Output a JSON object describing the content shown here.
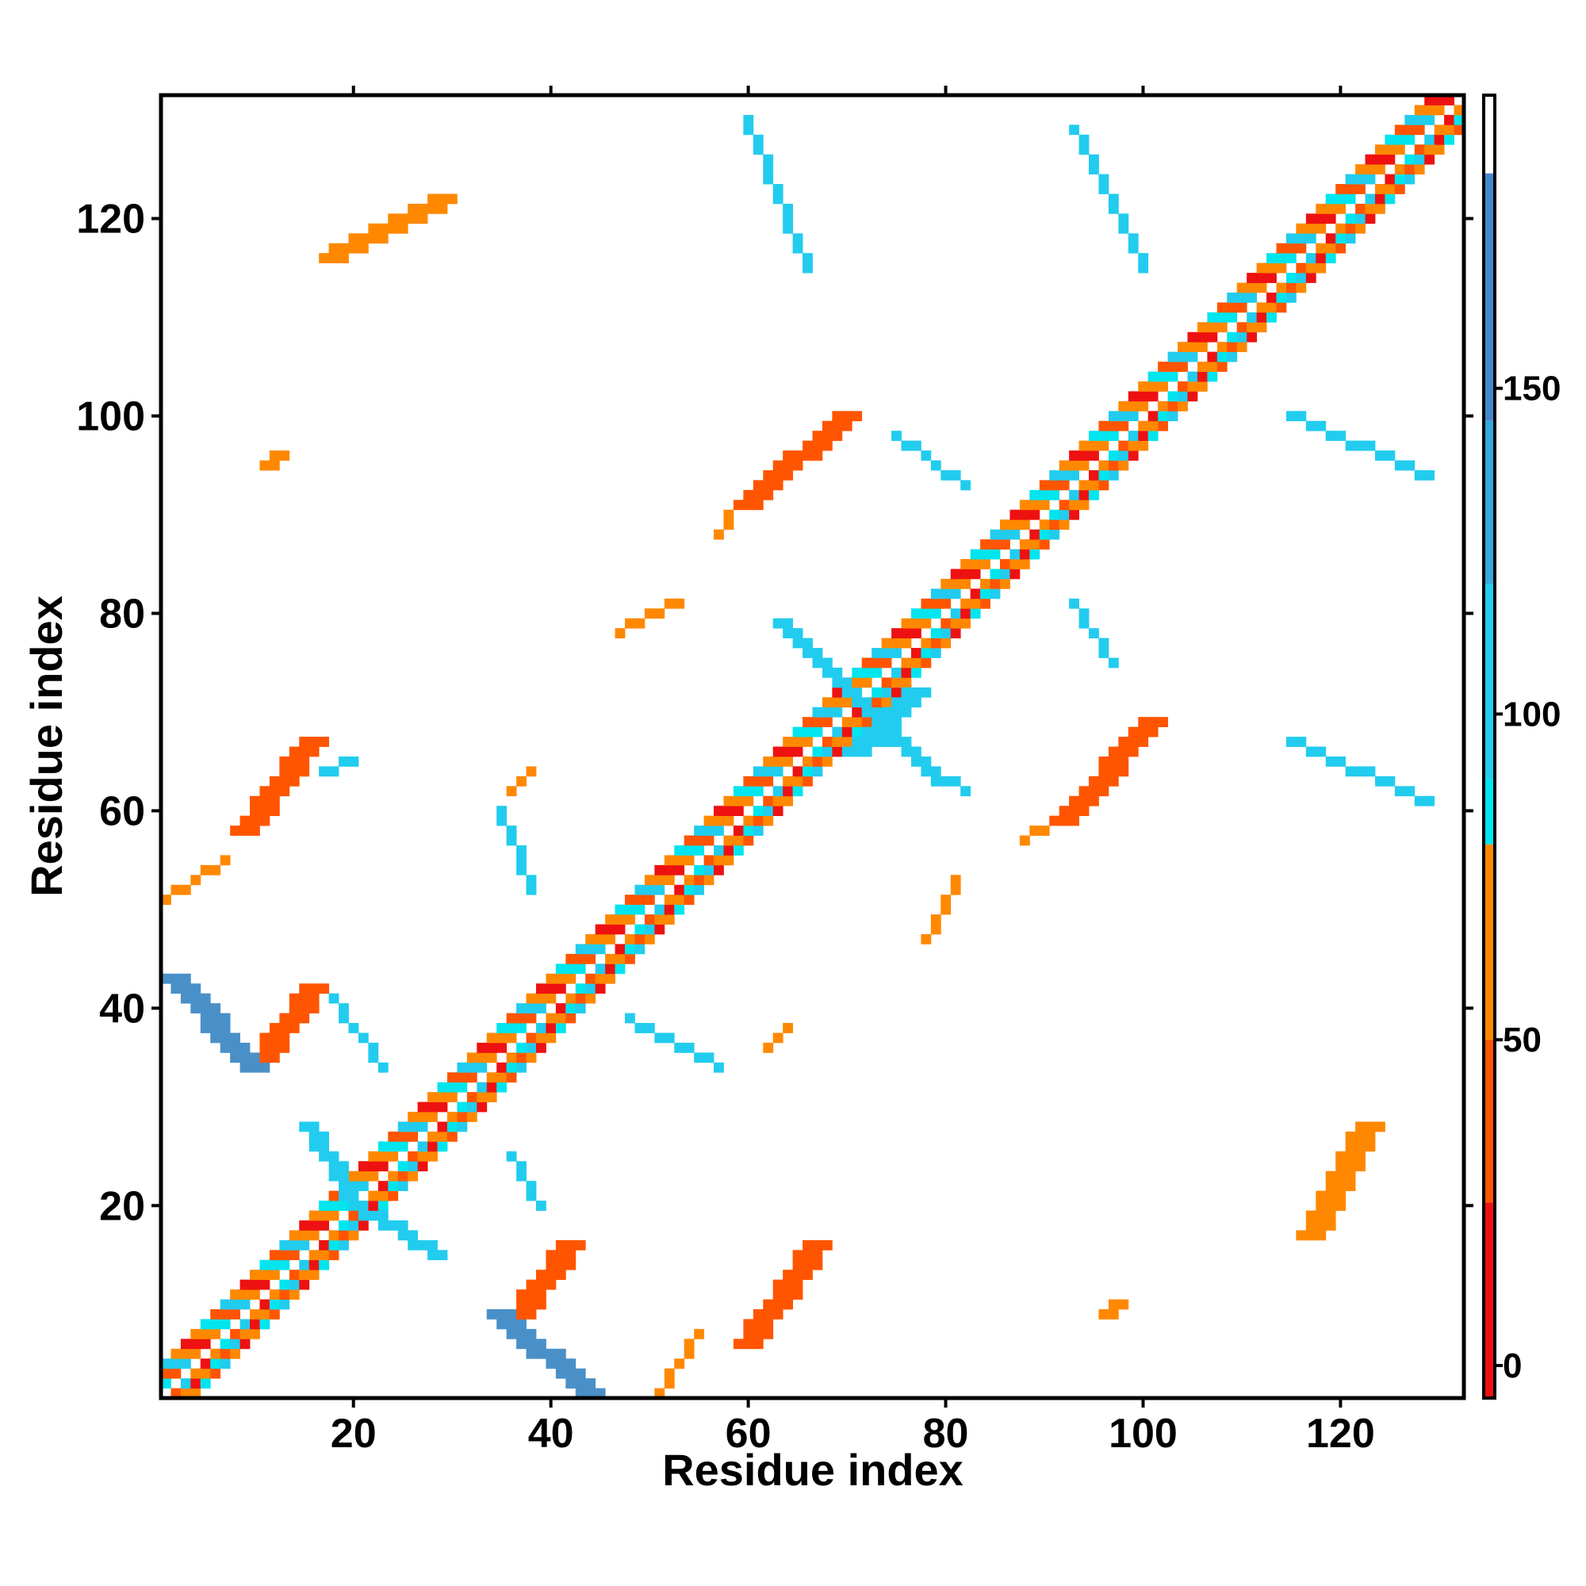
{
  "chart_data": {
    "type": "heatmap",
    "title": "",
    "xlabel": "Residue index",
    "ylabel": "Residue index",
    "xlim": [
      0.5,
      132.5
    ],
    "ylim": [
      0.5,
      132.5
    ],
    "x_ticks": [
      20,
      40,
      60,
      80,
      100,
      120
    ],
    "y_ticks": [
      20,
      40,
      60,
      80,
      100,
      120
    ],
    "colorbar": {
      "range": [
        -5,
        195
      ],
      "ticks": [
        0,
        50,
        100,
        150
      ],
      "bands": [
        {
          "from": -5,
          "to": 25,
          "color": "#ee1111"
        },
        {
          "from": 25,
          "to": 50,
          "color": "#ff5500"
        },
        {
          "from": 50,
          "to": 80,
          "color": "#ff8800"
        },
        {
          "from": 80,
          "to": 90,
          "color": "#00e5ee"
        },
        {
          "from": 90,
          "to": 120,
          "color": "#22ccee"
        },
        {
          "from": 120,
          "to": 145,
          "color": "#33aadd"
        },
        {
          "from": 145,
          "to": 183,
          "color": "#4488cc"
        },
        {
          "from": 183,
          "to": 195,
          "color": "#ffffff"
        }
      ]
    },
    "palette": {
      "red": "#ee1111",
      "red_orange": "#ff5500",
      "orange": "#ff8800",
      "cyan": "#00e5ee",
      "sky": "#22ccee",
      "steel": "#4a90c8"
    },
    "regions": [
      {
        "kind": "diagonal_band",
        "x_range": [
          1,
          132
        ],
        "offset": [
          -3,
          3
        ],
        "color_cycle": [
          "red",
          "orange",
          "cyan",
          "red_orange",
          "sky",
          "orange"
        ]
      },
      {
        "kind": "band",
        "color": "red_orange",
        "from": [
          9,
          34
        ],
        "to": [
          15,
          42
        ],
        "width": 3
      },
      {
        "kind": "band",
        "color": "red_orange",
        "from": [
          8,
          58
        ],
        "to": [
          15,
          67
        ],
        "width": 3
      },
      {
        "kind": "band",
        "color": "red_orange",
        "from": [
          35,
          8
        ],
        "to": [
          41,
          16
        ],
        "width": 3
      },
      {
        "kind": "band",
        "color": "red_orange",
        "from": [
          59,
          6
        ],
        "to": [
          66,
          16
        ],
        "width": 3
      },
      {
        "kind": "band",
        "color": "red_orange",
        "from": [
          59,
          91
        ],
        "to": [
          69,
          100
        ],
        "width": 3
      },
      {
        "kind": "band",
        "color": "red_orange",
        "from": [
          91,
          59
        ],
        "to": [
          100,
          69
        ],
        "width": 3
      },
      {
        "kind": "band",
        "color": "steel",
        "from": [
          1,
          43
        ],
        "to": [
          9,
          34
        ],
        "width": 3
      },
      {
        "kind": "band",
        "color": "steel",
        "from": [
          34,
          9
        ],
        "to": [
          43,
          1
        ],
        "width": 3
      },
      {
        "kind": "band",
        "color": "sky",
        "from": [
          15,
          28
        ],
        "to": [
          20,
          20
        ],
        "width": 2
      },
      {
        "kind": "band",
        "color": "sky",
        "from": [
          28,
          15
        ],
        "to": [
          20,
          20
        ],
        "width": 2
      },
      {
        "kind": "band",
        "color": "sky",
        "from": [
          70,
          66
        ],
        "to": [
          76,
          72
        ],
        "width": 3
      },
      {
        "kind": "band",
        "color": "sky",
        "from": [
          63,
          79
        ],
        "to": [
          72,
          70
        ],
        "width": 2
      },
      {
        "kind": "band",
        "color": "sky",
        "from": [
          79,
          63
        ],
        "to": [
          72,
          70
        ],
        "width": 2
      },
      {
        "kind": "band",
        "color": "sky",
        "from": [
          60,
          130
        ],
        "to": [
          66,
          115
        ],
        "width": 1
      },
      {
        "kind": "band",
        "color": "sky",
        "from": [
          93,
          129
        ],
        "to": [
          100,
          115
        ],
        "width": 1
      },
      {
        "kind": "band",
        "color": "sky",
        "from": [
          115,
          100
        ],
        "to": [
          129,
          94
        ],
        "width": 1
      },
      {
        "kind": "band",
        "color": "sky",
        "from": [
          75,
          98
        ],
        "to": [
          82,
          93
        ],
        "width": 1
      },
      {
        "kind": "band",
        "color": "sky",
        "from": [
          93,
          81
        ],
        "to": [
          97,
          75
        ],
        "width": 1
      },
      {
        "kind": "band",
        "color": "sky",
        "from": [
          115,
          67
        ],
        "to": [
          129,
          61
        ],
        "width": 1
      },
      {
        "kind": "band",
        "color": "sky",
        "from": [
          73,
          68
        ],
        "to": [
          82,
          62
        ],
        "width": 1
      },
      {
        "kind": "band",
        "color": "sky",
        "from": [
          17,
          64
        ],
        "to": [
          20,
          65
        ],
        "width": 1
      },
      {
        "kind": "band",
        "color": "sky",
        "from": [
          18,
          41
        ],
        "to": [
          23,
          34
        ],
        "width": 1
      },
      {
        "kind": "band",
        "color": "sky",
        "from": [
          36,
          25
        ],
        "to": [
          39,
          20
        ],
        "width": 1
      },
      {
        "kind": "band",
        "color": "sky",
        "from": [
          35,
          60
        ],
        "to": [
          38,
          52
        ],
        "width": 1
      },
      {
        "kind": "band",
        "color": "sky",
        "from": [
          48,
          39
        ],
        "to": [
          57,
          34
        ],
        "width": 1
      },
      {
        "kind": "band",
        "color": "orange",
        "from": [
          17,
          116
        ],
        "to": [
          28,
          122
        ],
        "width": 3
      },
      {
        "kind": "band",
        "color": "orange",
        "from": [
          116,
          17
        ],
        "to": [
          122,
          28
        ],
        "width": 3
      },
      {
        "kind": "band",
        "color": "orange",
        "from": [
          96,
          9
        ],
        "to": [
          97,
          10
        ],
        "width": 2
      },
      {
        "kind": "band",
        "color": "orange",
        "from": [
          11,
          95
        ],
        "to": [
          12,
          96
        ],
        "width": 2
      },
      {
        "kind": "band",
        "color": "orange",
        "from": [
          36,
          62
        ],
        "to": [
          38,
          64
        ],
        "width": 1
      },
      {
        "kind": "band",
        "color": "orange",
        "from": [
          62,
          36
        ],
        "to": [
          64,
          38
        ],
        "width": 1
      },
      {
        "kind": "band",
        "color": "orange",
        "from": [
          47,
          78
        ],
        "to": [
          53,
          81
        ],
        "width": 1
      },
      {
        "kind": "band",
        "color": "orange",
        "from": [
          78,
          47
        ],
        "to": [
          81,
          53
        ],
        "width": 1
      },
      {
        "kind": "band",
        "color": "orange",
        "from": [
          1,
          51
        ],
        "to": [
          7,
          55
        ],
        "width": 1
      },
      {
        "kind": "band",
        "color": "orange",
        "from": [
          51,
          1
        ],
        "to": [
          55,
          7
        ],
        "width": 1
      },
      {
        "kind": "band",
        "color": "orange",
        "from": [
          88,
          57
        ],
        "to": [
          90,
          58
        ],
        "width": 1
      },
      {
        "kind": "band",
        "color": "orange",
        "from": [
          57,
          88
        ],
        "to": [
          58,
          90
        ],
        "width": 1
      }
    ]
  }
}
